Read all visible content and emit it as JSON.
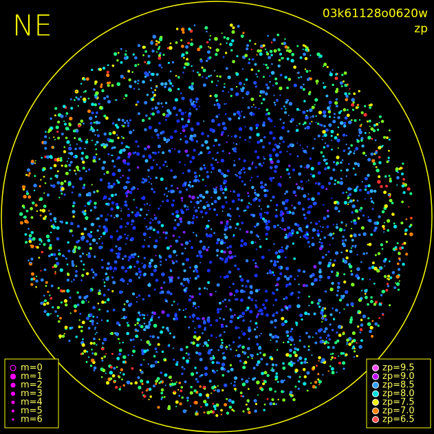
{
  "header": {
    "direction": "NE",
    "image_id": "03k61128o0620w",
    "mode": "zp"
  },
  "magnitude_legend": [
    "m=0",
    "m=1",
    "m=2",
    "m=3",
    "m=4",
    "m=5",
    "m=6"
  ],
  "zp_legend": [
    {
      "label": "zp=9.5",
      "color": "#ff4cff"
    },
    {
      "label": "zp=9.0",
      "color": "#c000ff"
    },
    {
      "label": "zp=8.5",
      "color": "#2fa0ff"
    },
    {
      "label": "zp=8.0",
      "color": "#00e0e0"
    },
    {
      "label": "zp=7.5",
      "color": "#f0f000"
    },
    {
      "label": "zp=7.0",
      "color": "#ff8000"
    },
    {
      "label": "zp=6.5",
      "color": "#ff5050"
    }
  ]
}
